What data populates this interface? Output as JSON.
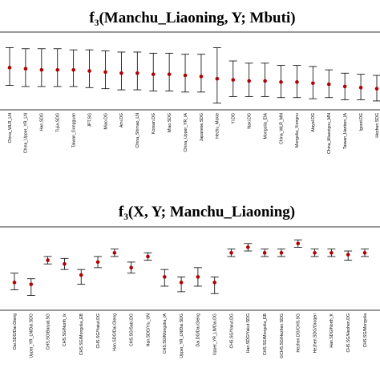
{
  "chart_data": [
    {
      "type": "scatter",
      "title": "f₃(Manchu_Liaoning, Y; Mbuti)",
      "xlabel": "",
      "ylabel": "",
      "grid": false,
      "categories": [
        "China_WLR_LN",
        "China_Upper_YR_LN",
        "Han.SDG",
        "Tujia.SDG",
        "Taiwan_Gongguan",
        "JPT.SG",
        "Miao.DG",
        "Ami.DG",
        "China_Shimao_LN",
        "Korean.DG",
        "Miao.SDG",
        "China_Upper_YR_IA",
        "Japanese.SDG",
        "Hezhu_Mokie",
        "Yi.DG",
        "Naxi.DG",
        "Mongolia_EIA",
        "China_WLR_MN",
        "Mongolia_Xiongnu",
        "Atayal.DG",
        "China_Miaozigou_MN",
        "Taiwan_Hanben_IA",
        "Igorot.DG",
        "Hezhen.SDG"
      ],
      "values": [
        0.98,
        0.97,
        0.96,
        0.96,
        0.96,
        0.95,
        0.94,
        0.93,
        0.93,
        0.92,
        0.92,
        0.91,
        0.9,
        0.88,
        0.87,
        0.86,
        0.86,
        0.85,
        0.85,
        0.84,
        0.83,
        0.81,
        0.8,
        0.79
      ],
      "lower": [
        0.82,
        0.81,
        0.81,
        0.81,
        0.81,
        0.8,
        0.79,
        0.78,
        0.78,
        0.77,
        0.77,
        0.76,
        0.76,
        0.66,
        0.72,
        0.72,
        0.72,
        0.71,
        0.71,
        0.7,
        0.71,
        0.69,
        0.69,
        0.68
      ],
      "upper": [
        1.16,
        1.15,
        1.15,
        1.15,
        1.14,
        1.14,
        1.13,
        1.12,
        1.12,
        1.11,
        1.11,
        1.1,
        1.1,
        1.16,
        1.04,
        1.02,
        1.02,
        1.0,
        1.0,
        0.99,
        0.96,
        0.93,
        0.92,
        0.91
      ],
      "ylim": [
        0.6,
        1.3
      ]
    },
    {
      "type": "scatter",
      "title": "f₃(X, Y; Manchu_Liaoning)",
      "xlabel": "",
      "ylabel": "",
      "grid": false,
      "categories": [
        "Dai.SDG/Dai.Gleng",
        "Upper_YR_LN/Dai.SDG",
        "CHS.SG/Baryat.SG",
        "CHS.SG/North_Ik",
        "CHS.SG/Mongolia_EB",
        "CHS.SG/Yakut.DG",
        "Han.SDG/Dai.Gleng",
        "CHS.SG/Sabi.DG",
        "Han.SDG/Yiu_UN",
        "CHS.SG/Mongolia_IA",
        "Upper_YR_LN/Dai.SDG",
        "Dai.DG/Dai.Gleng",
        "Upper_YR_LN/Dai.DG",
        "CHS.SG/Yakut.DG",
        "Han.SDG/Yakut.SDG",
        "CHS.SG/Mongolia_EB",
        "GCHS.SG/Hezhen.SDG",
        "Hezhen.DG/CHS.SG",
        "Hezhen.SDG/Oroqen",
        "Han.SDG/North_K",
        "CHS.SG/Hezhen.DG",
        "CHS.SG/Mongolia"
      ],
      "values": [
        0.3,
        0.28,
        0.54,
        0.5,
        0.38,
        0.52,
        0.62,
        0.46,
        0.58,
        0.36,
        0.3,
        0.36,
        0.3,
        0.62,
        0.68,
        0.62,
        0.62,
        0.72,
        0.62,
        0.62,
        0.6,
        0.62
      ],
      "lower": [
        0.22,
        0.16,
        0.5,
        0.44,
        0.28,
        0.46,
        0.58,
        0.4,
        0.54,
        0.26,
        0.2,
        0.26,
        0.18,
        0.58,
        0.64,
        0.58,
        0.58,
        0.68,
        0.58,
        0.58,
        0.54,
        0.58
      ],
      "upper": [
        0.4,
        0.34,
        0.58,
        0.56,
        0.44,
        0.58,
        0.66,
        0.52,
        0.62,
        0.44,
        0.36,
        0.46,
        0.36,
        0.66,
        0.72,
        0.66,
        0.66,
        0.76,
        0.66,
        0.66,
        0.64,
        0.66
      ],
      "ylim": [
        0,
        0.9
      ]
    }
  ],
  "colors": {
    "point": "#b30000",
    "errorbar": "#000000",
    "frame": "#000000"
  }
}
